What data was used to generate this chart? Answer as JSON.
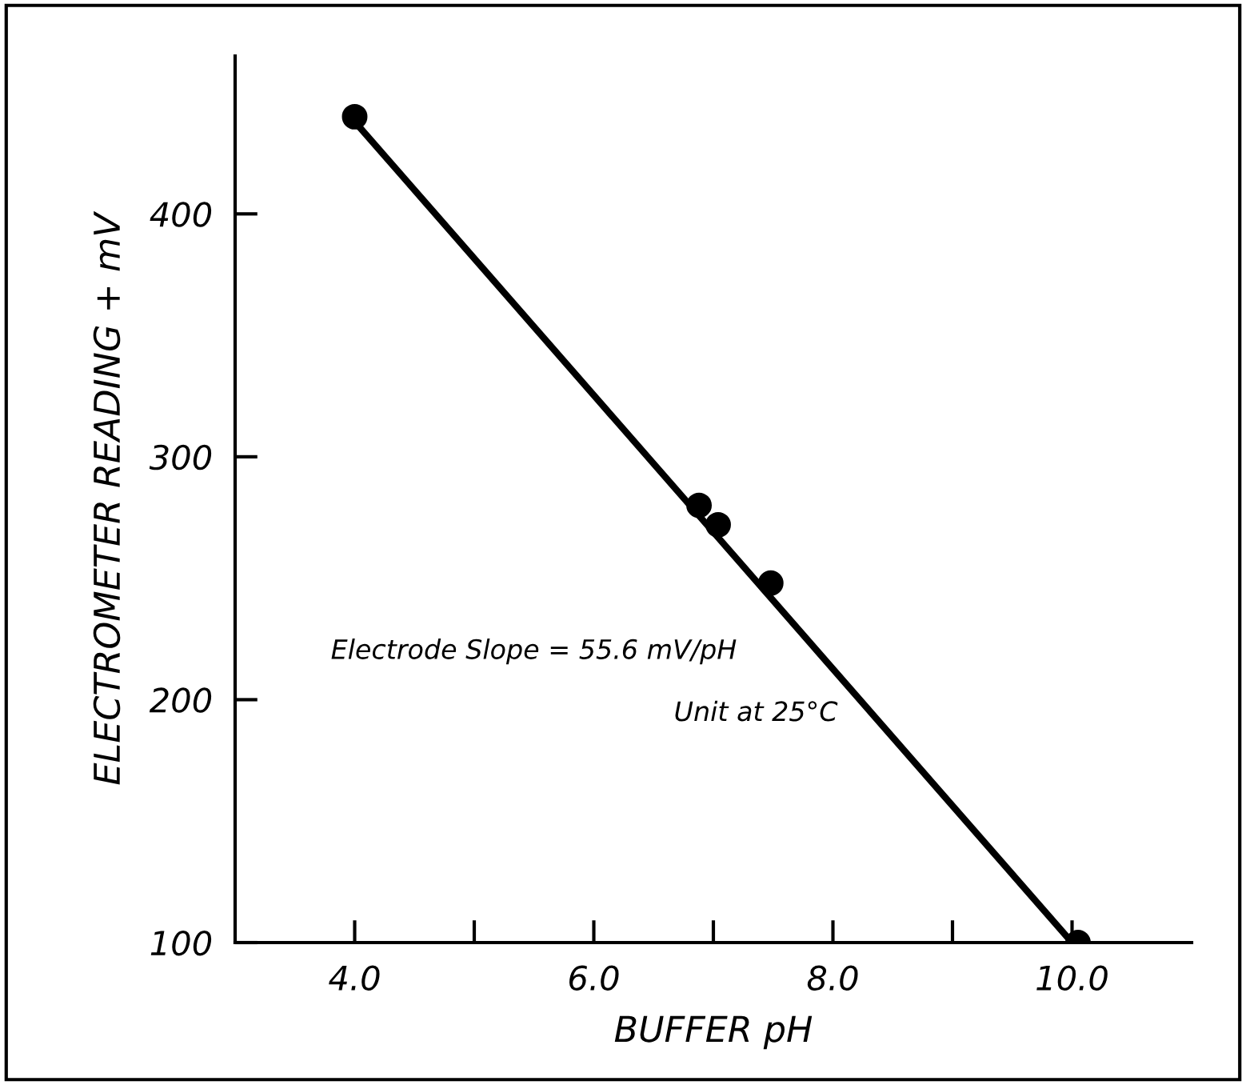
{
  "chart_data": {
    "type": "scatter",
    "xlabel": "BUFFER pH",
    "ylabel": "ELECTROMETER READING + mV",
    "annotations": [
      "Electrode Slope = 55.6 mV/pH",
      "Unit at 25°C"
    ],
    "xlim": [
      3.0,
      11.0
    ],
    "ylim": [
      100,
      465
    ],
    "xticks": [
      {
        "value": 4.0,
        "label": "4.0"
      },
      {
        "value": 5.0,
        "label": null
      },
      {
        "value": 6.0,
        "label": "6.0"
      },
      {
        "value": 7.0,
        "label": null
      },
      {
        "value": 8.0,
        "label": "8.0"
      },
      {
        "value": 9.0,
        "label": null
      },
      {
        "value": 10.0,
        "label": "10.0"
      }
    ],
    "yticks": [
      100,
      200,
      300,
      400
    ],
    "grid": false,
    "legend": false,
    "series": [
      {
        "type": "line",
        "color": "#000000",
        "x": [
          4.0,
          10.0
        ],
        "values": [
          438,
          100
        ],
        "marker": "none",
        "line_style": "solid"
      },
      {
        "color": "#000000",
        "x": [
          4.0,
          6.88,
          7.04,
          7.48,
          10.05
        ],
        "values": [
          440,
          280,
          272,
          248,
          100
        ],
        "marker": "circle"
      }
    ]
  }
}
